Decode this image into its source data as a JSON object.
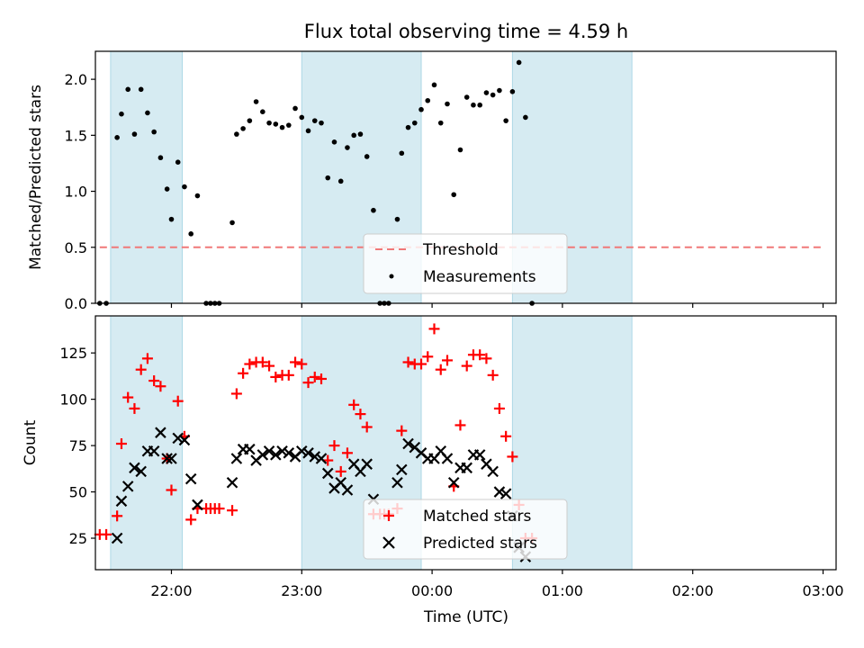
{
  "chart_data": [
    {
      "type": "scatter",
      "title": "Flux total observing time = 4.59 h",
      "xlabel": "",
      "ylabel": "Matched/Predicted stars",
      "xlim": [
        "21:25",
        "03:06"
      ],
      "ylim": [
        0,
        2.25
      ],
      "yticks": [
        0.0,
        0.5,
        1.0,
        1.5,
        2.0
      ],
      "ytick_labels": [
        "0.0",
        "0.5",
        "1.0",
        "1.5",
        "2.0"
      ],
      "grid": false,
      "legend_position": "lower center",
      "shaded_intervals": [
        [
          "21:32",
          "22:05"
        ],
        [
          "23:00",
          "23:55"
        ],
        [
          "00:37",
          "01:32"
        ]
      ],
      "threshold": {
        "name": "Threshold",
        "value": 0.5,
        "x_start": "21:27",
        "x_end": "03:00",
        "color": "#f07878"
      },
      "series": [
        {
          "name": "Measurements",
          "color": "#000000",
          "points": [
            [
              "21:27",
              0.0
            ],
            [
              "21:30",
              0.0
            ],
            [
              "21:35",
              1.48
            ],
            [
              "21:37",
              1.69
            ],
            [
              "21:40",
              1.91
            ],
            [
              "21:43",
              1.51
            ],
            [
              "21:46",
              1.91
            ],
            [
              "21:49",
              1.7
            ],
            [
              "21:52",
              1.53
            ],
            [
              "21:55",
              1.3
            ],
            [
              "21:58",
              1.02
            ],
            [
              "22:00",
              0.75
            ],
            [
              "22:03",
              1.26
            ],
            [
              "22:06",
              1.04
            ],
            [
              "22:09",
              0.62
            ],
            [
              "22:12",
              0.96
            ],
            [
              "22:16",
              0.0
            ],
            [
              "22:18",
              0.0
            ],
            [
              "22:20",
              0.0
            ],
            [
              "22:22",
              0.0
            ],
            [
              "22:28",
              0.72
            ],
            [
              "22:30",
              1.51
            ],
            [
              "22:33",
              1.56
            ],
            [
              "22:36",
              1.63
            ],
            [
              "22:39",
              1.8
            ],
            [
              "22:42",
              1.71
            ],
            [
              "22:45",
              1.61
            ],
            [
              "22:48",
              1.6
            ],
            [
              "22:51",
              1.57
            ],
            [
              "22:54",
              1.59
            ],
            [
              "22:57",
              1.74
            ],
            [
              "23:00",
              1.66
            ],
            [
              "23:03",
              1.54
            ],
            [
              "23:06",
              1.63
            ],
            [
              "23:09",
              1.61
            ],
            [
              "23:12",
              1.12
            ],
            [
              "23:15",
              1.44
            ],
            [
              "23:18",
              1.09
            ],
            [
              "23:21",
              1.39
            ],
            [
              "23:24",
              1.5
            ],
            [
              "23:27",
              1.51
            ],
            [
              "23:30",
              1.31
            ],
            [
              "23:33",
              0.83
            ],
            [
              "23:36",
              0.0
            ],
            [
              "23:38",
              0.0
            ],
            [
              "23:40",
              0.0
            ],
            [
              "23:44",
              0.75
            ],
            [
              "23:46",
              1.34
            ],
            [
              "23:49",
              1.57
            ],
            [
              "23:52",
              1.61
            ],
            [
              "23:55",
              1.73
            ],
            [
              "23:58",
              1.81
            ],
            [
              "00:01",
              1.95
            ],
            [
              "00:04",
              1.61
            ],
            [
              "00:07",
              1.78
            ],
            [
              "00:10",
              0.97
            ],
            [
              "00:13",
              1.37
            ],
            [
              "00:16",
              1.84
            ],
            [
              "00:19",
              1.77
            ],
            [
              "00:22",
              1.77
            ],
            [
              "00:25",
              1.88
            ],
            [
              "00:28",
              1.86
            ],
            [
              "00:31",
              1.9
            ],
            [
              "00:34",
              1.63
            ],
            [
              "00:37",
              1.89
            ],
            [
              "00:40",
              2.15
            ],
            [
              "00:43",
              1.66
            ],
            [
              "00:46",
              0.0
            ]
          ]
        }
      ]
    },
    {
      "type": "scatter",
      "title": "",
      "xlabel": "Time (UTC)",
      "ylabel": "Count",
      "xlim": [
        "21:25",
        "03:06"
      ],
      "ylim": [
        8,
        145
      ],
      "yticks": [
        25,
        50,
        75,
        100,
        125
      ],
      "ytick_labels": [
        "25",
        "50",
        "75",
        "100",
        "125"
      ],
      "xtick_labels": [
        "22:00",
        "23:00",
        "00:00",
        "01:00",
        "02:00",
        "03:00"
      ],
      "grid": false,
      "legend_position": "lower center",
      "shaded_intervals": [
        [
          "21:32",
          "22:05"
        ],
        [
          "23:00",
          "23:55"
        ],
        [
          "00:37",
          "01:32"
        ]
      ],
      "series": [
        {
          "name": "Matched stars",
          "marker": "plus",
          "color": "#ff0000",
          "points": [
            [
              "21:27",
              27
            ],
            [
              "21:30",
              27
            ],
            [
              "21:35",
              37
            ],
            [
              "21:37",
              76
            ],
            [
              "21:40",
              101
            ],
            [
              "21:43",
              95
            ],
            [
              "21:46",
              116
            ],
            [
              "21:49",
              122
            ],
            [
              "21:52",
              110
            ],
            [
              "21:55",
              107
            ],
            [
              "21:58",
              68
            ],
            [
              "22:00",
              51
            ],
            [
              "22:03",
              99
            ],
            [
              "22:06",
              80
            ],
            [
              "22:09",
              35
            ],
            [
              "22:12",
              41
            ],
            [
              "22:16",
              41
            ],
            [
              "22:18",
              41
            ],
            [
              "22:20",
              41
            ],
            [
              "22:22",
              41
            ],
            [
              "22:28",
              40
            ],
            [
              "22:30",
              103
            ],
            [
              "22:33",
              114
            ],
            [
              "22:36",
              119
            ],
            [
              "22:39",
              120
            ],
            [
              "22:42",
              120
            ],
            [
              "22:45",
              118
            ],
            [
              "22:48",
              112
            ],
            [
              "22:51",
              113
            ],
            [
              "22:54",
              113
            ],
            [
              "22:57",
              120
            ],
            [
              "23:00",
              119
            ],
            [
              "23:03",
              109
            ],
            [
              "23:06",
              112
            ],
            [
              "23:09",
              111
            ],
            [
              "23:12",
              67
            ],
            [
              "23:15",
              75
            ],
            [
              "23:18",
              61
            ],
            [
              "23:21",
              71
            ],
            [
              "23:24",
              97
            ],
            [
              "23:27",
              92
            ],
            [
              "23:30",
              85
            ],
            [
              "23:33",
              38
            ],
            [
              "23:36",
              38
            ],
            [
              "23:38",
              38
            ],
            [
              "23:40",
              38
            ],
            [
              "23:44",
              41
            ],
            [
              "23:46",
              83
            ],
            [
              "23:49",
              120
            ],
            [
              "23:52",
              119
            ],
            [
              "23:55",
              119
            ],
            [
              "23:58",
              123
            ],
            [
              "00:01",
              138
            ],
            [
              "00:04",
              116
            ],
            [
              "00:07",
              121
            ],
            [
              "00:10",
              53
            ],
            [
              "00:13",
              86
            ],
            [
              "00:16",
              118
            ],
            [
              "00:19",
              124
            ],
            [
              "00:22",
              124
            ],
            [
              "00:25",
              122
            ],
            [
              "00:28",
              113
            ],
            [
              "00:31",
              95
            ],
            [
              "00:34",
              80
            ],
            [
              "00:37",
              69
            ],
            [
              "00:40",
              43
            ],
            [
              "00:43",
              25
            ],
            [
              "00:46",
              25
            ]
          ]
        },
        {
          "name": "Predicted stars",
          "marker": "x",
          "color": "#000000",
          "points": [
            [
              "21:35",
              25
            ],
            [
              "21:37",
              45
            ],
            [
              "21:40",
              53
            ],
            [
              "21:43",
              63
            ],
            [
              "21:46",
              61
            ],
            [
              "21:49",
              72
            ],
            [
              "21:52",
              72
            ],
            [
              "21:55",
              82
            ],
            [
              "21:58",
              68
            ],
            [
              "22:00",
              68
            ],
            [
              "22:03",
              79
            ],
            [
              "22:06",
              78
            ],
            [
              "22:09",
              57
            ],
            [
              "22:12",
              43
            ],
            [
              "22:28",
              55
            ],
            [
              "22:30",
              68
            ],
            [
              "22:33",
              73
            ],
            [
              "22:36",
              73
            ],
            [
              "22:39",
              67
            ],
            [
              "22:42",
              70
            ],
            [
              "22:45",
              72
            ],
            [
              "22:48",
              70
            ],
            [
              "22:51",
              72
            ],
            [
              "22:54",
              71
            ],
            [
              "22:57",
              69
            ],
            [
              "23:00",
              72
            ],
            [
              "23:03",
              71
            ],
            [
              "23:06",
              69
            ],
            [
              "23:09",
              68
            ],
            [
              "23:12",
              60
            ],
            [
              "23:15",
              52
            ],
            [
              "23:18",
              55
            ],
            [
              "23:21",
              51
            ],
            [
              "23:24",
              65
            ],
            [
              "23:27",
              61
            ],
            [
              "23:30",
              65
            ],
            [
              "23:33",
              46
            ],
            [
              "23:44",
              55
            ],
            [
              "23:46",
              62
            ],
            [
              "23:49",
              76
            ],
            [
              "23:52",
              74
            ],
            [
              "23:55",
              71
            ],
            [
              "23:58",
              68
            ],
            [
              "00:01",
              68
            ],
            [
              "00:04",
              72
            ],
            [
              "00:07",
              68
            ],
            [
              "00:10",
              55
            ],
            [
              "00:13",
              63
            ],
            [
              "00:16",
              63
            ],
            [
              "00:19",
              70
            ],
            [
              "00:22",
              70
            ],
            [
              "00:25",
              65
            ],
            [
              "00:28",
              61
            ],
            [
              "00:31",
              50
            ],
            [
              "00:34",
              49
            ],
            [
              "00:37",
              37
            ],
            [
              "00:40",
              20
            ],
            [
              "00:43",
              15
            ]
          ]
        }
      ]
    }
  ]
}
